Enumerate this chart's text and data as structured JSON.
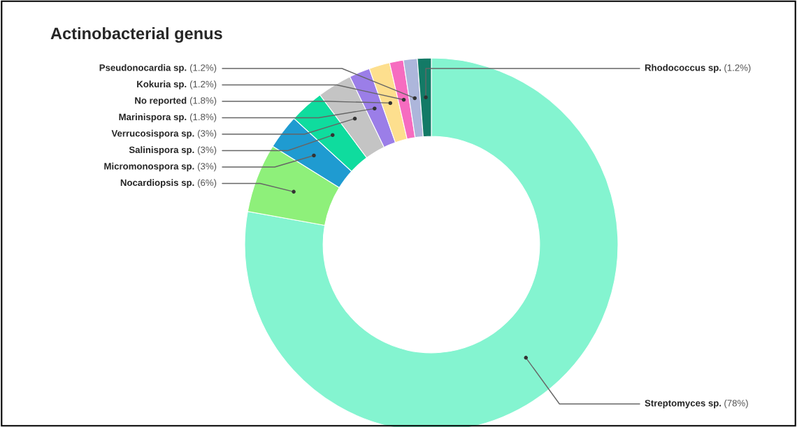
{
  "chart_data": {
    "type": "donut",
    "title": "Actinobacterial genus",
    "categories": [
      "Streptomyces sp.",
      "Nocardiopsis sp.",
      "Micromonospora sp.",
      "Salinispora sp.",
      "Verrucosispora sp.",
      "Marinispora sp.",
      "No reported",
      "Kokuria sp.",
      "Pseudonocardia sp.",
      "Rhodococcus sp."
    ],
    "values": [
      78,
      6,
      3,
      3,
      3,
      1.8,
      1.8,
      1.2,
      1.2,
      1.2
    ],
    "value_labels": [
      "(78%)",
      "(6%)",
      "(3%)",
      "(3%)",
      "(3%)",
      "(1.8%)",
      "(1.8%)",
      "(1.2%)",
      "(1.2%)",
      "(1.2%)"
    ],
    "colors": [
      "#84f4d0",
      "#8ef07a",
      "#1f9bd1",
      "#0fdc9e",
      "#c4c4c4",
      "#9b7ee8",
      "#fddf8e",
      "#f66cc0",
      "#adb6db",
      "#137a66"
    ]
  }
}
